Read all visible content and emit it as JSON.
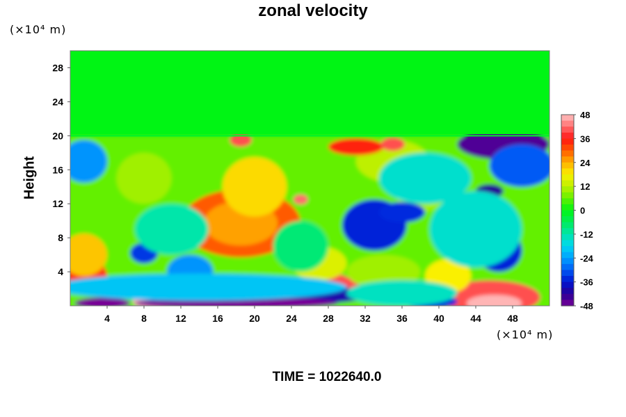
{
  "chart_data": {
    "type": "heatmap",
    "title": "zonal velocity",
    "ylabel": "Height",
    "xlabel": "",
    "x_unit": "(×10⁴ m)",
    "y_unit": "(×10⁴ m)",
    "xlim": [
      0,
      52
    ],
    "ylim": [
      0,
      30
    ],
    "x_ticks": [
      4,
      8,
      12,
      16,
      20,
      24,
      28,
      32,
      36,
      40,
      44,
      48
    ],
    "y_ticks": [
      4,
      8,
      12,
      16,
      20,
      24,
      28
    ],
    "colorbar": {
      "range": [
        -48,
        48
      ],
      "ticks": [
        48,
        36,
        24,
        12,
        0,
        -12,
        -24,
        -36,
        -48
      ]
    },
    "background_value": 0,
    "upper_layer_above_height": 20,
    "features": [
      {
        "x": 18.5,
        "y": 9.7,
        "rx": 6.5,
        "ry": 4.0,
        "value": 30
      },
      {
        "x": 18.5,
        "y": 9.7,
        "rx": 4.0,
        "ry": 2.6,
        "value": 25
      },
      {
        "x": 20,
        "y": 14,
        "rx": 3.5,
        "ry": 3.5,
        "value": 20
      },
      {
        "x": 8,
        "y": 15,
        "rx": 3,
        "ry": 3,
        "value": 10
      },
      {
        "x": 35,
        "y": 17,
        "rx": 4,
        "ry": 2.5,
        "value": 12
      },
      {
        "x": 38,
        "y": 14,
        "rx": 3,
        "ry": 3,
        "value": 10
      },
      {
        "x": 31,
        "y": 18.7,
        "rx": 3,
        "ry": 1.0,
        "value": 35
      },
      {
        "x": 18.5,
        "y": 19.5,
        "rx": 1.2,
        "ry": 0.8,
        "value": 40
      },
      {
        "x": 35,
        "y": 19,
        "rx": 1.3,
        "ry": 0.8,
        "value": 40
      },
      {
        "x": 31,
        "y": 2.5,
        "rx": 1.5,
        "ry": 1.0,
        "value": 40
      },
      {
        "x": 29,
        "y": 3,
        "rx": 1.2,
        "ry": 0.7,
        "value": 40
      },
      {
        "x": 25,
        "y": 12.5,
        "rx": 0.8,
        "ry": 0.6,
        "value": 42
      },
      {
        "x": 1.5,
        "y": 3.5,
        "rx": 2.5,
        "ry": 2.2,
        "value": 33
      },
      {
        "x": 1.5,
        "y": 6,
        "rx": 2.5,
        "ry": 2.5,
        "value": 22
      },
      {
        "x": 9,
        "y": 0.6,
        "rx": 2.2,
        "ry": 1.2,
        "value": 47
      },
      {
        "x": 45.5,
        "y": 1.0,
        "rx": 5.5,
        "ry": 2.0,
        "value": 40
      },
      {
        "x": 46,
        "y": 0.3,
        "rx": 3.0,
        "ry": 1.0,
        "value": 47
      },
      {
        "x": 41,
        "y": 3.5,
        "rx": 2.5,
        "ry": 2.0,
        "value": 18
      },
      {
        "x": 27,
        "y": 5,
        "rx": 3,
        "ry": 2,
        "value": 15
      },
      {
        "x": 34,
        "y": 4,
        "rx": 4,
        "ry": 2,
        "value": 10
      },
      {
        "x": 47,
        "y": 19,
        "rx": 5,
        "ry": 1.8,
        "value": -45
      },
      {
        "x": 49,
        "y": 16.5,
        "rx": 3.5,
        "ry": 2.5,
        "value": -30
      },
      {
        "x": 1.5,
        "y": 17,
        "rx": 2.5,
        "ry": 2.5,
        "value": -25
      },
      {
        "x": 33,
        "y": 9.5,
        "rx": 3.5,
        "ry": 3.0,
        "value": -35
      },
      {
        "x": 36,
        "y": 11,
        "rx": 2.5,
        "ry": 1.2,
        "value": -34
      },
      {
        "x": 38.5,
        "y": 15,
        "rx": 5,
        "ry": 3.0,
        "value": -15
      },
      {
        "x": 45.5,
        "y": 13.5,
        "rx": 1.5,
        "ry": 0.8,
        "value": -42
      },
      {
        "x": 46.5,
        "y": 6.5,
        "rx": 2.5,
        "ry": 2.5,
        "value": -35
      },
      {
        "x": 44,
        "y": 9,
        "rx": 5,
        "ry": 4.5,
        "value": -15
      },
      {
        "x": 8,
        "y": 6.2,
        "rx": 1.5,
        "ry": 1.2,
        "value": -33
      },
      {
        "x": 13,
        "y": 4,
        "rx": 2.5,
        "ry": 2.0,
        "value": -25
      },
      {
        "x": 11,
        "y": 9,
        "rx": 4,
        "ry": 3,
        "value": -12
      },
      {
        "x": 25,
        "y": 7,
        "rx": 3,
        "ry": 3,
        "value": -8
      },
      {
        "x": 22,
        "y": 1.3,
        "rx": 11,
        "ry": 1.2,
        "value": -40
      },
      {
        "x": 18,
        "y": 0.3,
        "rx": 11,
        "ry": 0.7,
        "value": -50
      },
      {
        "x": 3.5,
        "y": 0.3,
        "rx": 3,
        "ry": 0.7,
        "value": -50
      },
      {
        "x": 14,
        "y": 2.2,
        "rx": 16,
        "ry": 1.6,
        "value": -20
      },
      {
        "x": 39,
        "y": 0.5,
        "rx": 3,
        "ry": 0.8,
        "value": -35
      },
      {
        "x": 36,
        "y": 1.5,
        "rx": 6,
        "ry": 1.5,
        "value": -14
      }
    ]
  },
  "footer": {
    "label": "TIME = 1022640.0"
  }
}
